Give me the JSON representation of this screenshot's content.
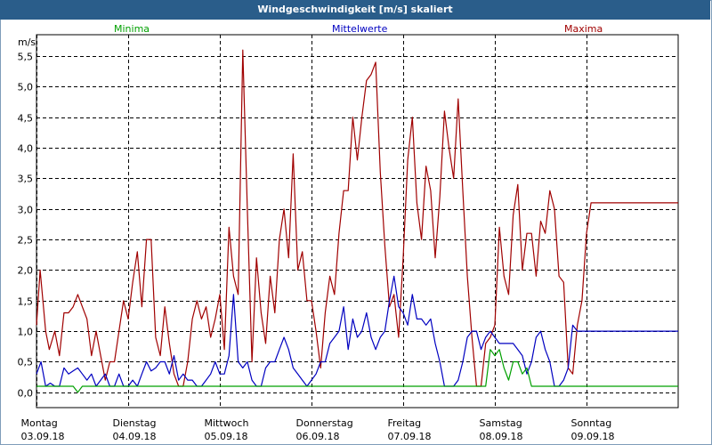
{
  "window": {
    "title": "Windgeschwindigkeit [m/s] skaliert"
  },
  "colors": {
    "min": "#00a000",
    "mean": "#0000c0",
    "max": "#a00000",
    "grid": "#000000",
    "titlebar": "#2a5d8a"
  },
  "chart_data": {
    "type": "line",
    "ylabel": "m/s",
    "ylim": [
      -0.25,
      5.85
    ],
    "y_ticks": [
      "0,0",
      "0,5",
      "1,0",
      "1,5",
      "2,0",
      "2,5",
      "3,0",
      "3,5",
      "4,0",
      "4,5",
      "5,0",
      "5,5"
    ],
    "y_tick_values": [
      0,
      0.5,
      1.0,
      1.5,
      2.0,
      2.5,
      3.0,
      3.5,
      4.0,
      4.5,
      5.0,
      5.5
    ],
    "x_range_days": [
      0,
      7
    ],
    "x_ticks": [
      {
        "day": "Montag",
        "date": "03.09.18"
      },
      {
        "day": "Dienstag",
        "date": "04.09.18"
      },
      {
        "day": "Mittwoch",
        "date": "05.09.18"
      },
      {
        "day": "Donnerstag",
        "date": "06.09.18"
      },
      {
        "day": "Freitag",
        "date": "07.09.18"
      },
      {
        "day": "Samstag",
        "date": "08.09.18"
      },
      {
        "day": "Sonntag",
        "date": "09.09.18"
      }
    ],
    "grid": true,
    "series": [
      {
        "name": "Maxima",
        "x": [
          0.0,
          0.04,
          0.1,
          0.14,
          0.2,
          0.25,
          0.3,
          0.35,
          0.4,
          0.45,
          0.5,
          0.55,
          0.6,
          0.65,
          0.7,
          0.75,
          0.8,
          0.85,
          0.9,
          0.95,
          1.0,
          1.05,
          1.1,
          1.15,
          1.2,
          1.25,
          1.3,
          1.35,
          1.4,
          1.45,
          1.5,
          1.55,
          1.6,
          1.65,
          1.7,
          1.75,
          1.8,
          1.85,
          1.9,
          1.95,
          2.0,
          2.05,
          2.1,
          2.15,
          2.2,
          2.25,
          2.3,
          2.35,
          2.4,
          2.45,
          2.5,
          2.55,
          2.6,
          2.65,
          2.7,
          2.75,
          2.8,
          2.85,
          2.9,
          2.95,
          3.0,
          3.05,
          3.1,
          3.15,
          3.2,
          3.25,
          3.3,
          3.35,
          3.4,
          3.45,
          3.5,
          3.55,
          3.6,
          3.65,
          3.7,
          3.75,
          3.8,
          3.85,
          3.9,
          3.95,
          4.0,
          4.05,
          4.1,
          4.15,
          4.2,
          4.25,
          4.3,
          4.35,
          4.4,
          4.45,
          4.5,
          4.55,
          4.6,
          4.65,
          4.7,
          4.75,
          4.8,
          4.85,
          4.9,
          4.95,
          5.0,
          5.05,
          5.1,
          5.15,
          5.2,
          5.25,
          5.3,
          5.35,
          5.4,
          5.45,
          5.5,
          5.55,
          5.6,
          5.65,
          5.7,
          5.75,
          5.8,
          5.85,
          5.9,
          5.95,
          6.0,
          6.05,
          6.1,
          6.15,
          6.2,
          6.25,
          6.3,
          6.35,
          6.4,
          6.45,
          6.5,
          6.55,
          6.6,
          6.65,
          6.7,
          6.75,
          6.8,
          6.85,
          6.9,
          6.95,
          7.0
        ],
        "values": [
          1.1,
          2.0,
          1.0,
          0.7,
          1.0,
          0.6,
          1.3,
          1.3,
          1.4,
          1.6,
          1.4,
          1.2,
          0.6,
          1.0,
          0.6,
          0.2,
          0.5,
          0.5,
          1.0,
          1.5,
          1.2,
          1.8,
          2.3,
          1.4,
          2.5,
          2.5,
          0.9,
          0.6,
          1.4,
          0.8,
          0.3,
          0.1,
          0.1,
          0.5,
          1.2,
          1.5,
          1.2,
          1.4,
          0.9,
          1.2,
          1.6,
          0.7,
          2.7,
          1.9,
          1.6,
          5.6,
          3.0,
          0.5,
          2.2,
          1.3,
          0.8,
          1.9,
          1.3,
          2.5,
          3.0,
          2.2,
          3.9,
          2.0,
          2.3,
          1.5,
          1.5,
          1.0,
          0.4,
          1.3,
          1.9,
          1.6,
          2.6,
          3.3,
          3.3,
          4.5,
          3.8,
          4.5,
          5.1,
          5.2,
          5.4,
          3.6,
          2.4,
          1.4,
          1.6,
          0.9,
          2.2,
          3.8,
          4.5,
          3.1,
          2.5,
          3.7,
          3.3,
          2.2,
          3.2,
          4.6,
          4.0,
          3.5,
          4.8,
          3.3,
          1.9,
          0.9,
          0.1,
          0.1,
          0.8,
          0.9,
          1.1,
          2.7,
          1.9,
          1.6,
          2.9,
          3.4,
          2.0,
          2.6,
          2.6,
          1.9,
          2.8,
          2.6,
          3.3,
          3.0,
          1.9,
          1.8,
          0.4,
          0.3,
          1.1,
          1.5,
          2.6,
          3.1,
          3.1,
          3.1,
          3.1,
          3.1,
          3.1,
          3.1,
          3.1,
          3.1,
          3.1,
          3.1,
          3.1,
          3.1,
          3.1,
          3.1,
          3.1,
          3.1,
          3.1,
          3.1,
          3.1
        ]
      },
      {
        "name": "Mittelwerte",
        "x": [
          0.0,
          0.05,
          0.1,
          0.15,
          0.2,
          0.25,
          0.3,
          0.35,
          0.4,
          0.45,
          0.5,
          0.55,
          0.6,
          0.65,
          0.7,
          0.75,
          0.8,
          0.85,
          0.9,
          0.95,
          1.0,
          1.05,
          1.1,
          1.15,
          1.2,
          1.25,
          1.3,
          1.35,
          1.4,
          1.45,
          1.5,
          1.55,
          1.6,
          1.65,
          1.7,
          1.75,
          1.8,
          1.85,
          1.9,
          1.95,
          2.0,
          2.05,
          2.1,
          2.15,
          2.2,
          2.25,
          2.3,
          2.35,
          2.4,
          2.45,
          2.5,
          2.55,
          2.6,
          2.65,
          2.7,
          2.75,
          2.8,
          2.85,
          2.9,
          2.95,
          3.0,
          3.05,
          3.1,
          3.15,
          3.2,
          3.25,
          3.3,
          3.35,
          3.4,
          3.45,
          3.5,
          3.55,
          3.6,
          3.65,
          3.7,
          3.75,
          3.8,
          3.85,
          3.9,
          3.95,
          4.0,
          4.05,
          4.1,
          4.15,
          4.2,
          4.25,
          4.3,
          4.35,
          4.4,
          4.45,
          4.5,
          4.55,
          4.6,
          4.65,
          4.7,
          4.75,
          4.8,
          4.85,
          4.9,
          4.95,
          5.0,
          5.05,
          5.1,
          5.15,
          5.2,
          5.25,
          5.3,
          5.35,
          5.4,
          5.45,
          5.5,
          5.55,
          5.6,
          5.65,
          5.7,
          5.75,
          5.8,
          5.85,
          5.9,
          5.95,
          6.0,
          6.05,
          6.1,
          6.15,
          6.2,
          6.25,
          6.3,
          6.35,
          6.4,
          6.45,
          6.5,
          6.55,
          6.6,
          6.65,
          6.7,
          6.75,
          6.8,
          6.85,
          6.9,
          6.95,
          7.0
        ],
        "values": [
          0.3,
          0.5,
          0.1,
          0.15,
          0.1,
          0.1,
          0.4,
          0.3,
          0.35,
          0.4,
          0.3,
          0.2,
          0.3,
          0.1,
          0.2,
          0.3,
          0.1,
          0.1,
          0.3,
          0.1,
          0.1,
          0.2,
          0.1,
          0.3,
          0.5,
          0.35,
          0.4,
          0.5,
          0.5,
          0.3,
          0.6,
          0.2,
          0.3,
          0.2,
          0.2,
          0.1,
          0.1,
          0.2,
          0.3,
          0.5,
          0.3,
          0.3,
          0.6,
          1.6,
          0.5,
          0.4,
          0.5,
          0.2,
          0.1,
          0.1,
          0.4,
          0.5,
          0.5,
          0.7,
          0.9,
          0.7,
          0.4,
          0.3,
          0.2,
          0.1,
          0.2,
          0.3,
          0.5,
          0.5,
          0.8,
          0.9,
          1.0,
          1.4,
          0.7,
          1.2,
          0.9,
          1.0,
          1.3,
          0.9,
          0.7,
          0.9,
          1.0,
          1.5,
          1.9,
          1.4,
          1.3,
          1.1,
          1.6,
          1.2,
          1.2,
          1.1,
          1.2,
          0.8,
          0.5,
          0.1,
          0.1,
          0.1,
          0.2,
          0.5,
          0.9,
          1.0,
          1.0,
          0.7,
          0.9,
          1.0,
          0.9,
          0.8,
          0.8,
          0.8,
          0.8,
          0.7,
          0.6,
          0.3,
          0.5,
          0.9,
          1.0,
          0.7,
          0.5,
          0.1,
          0.1,
          0.2,
          0.4,
          1.1,
          1.0,
          1.0,
          1.0,
          1.0,
          1.0,
          1.0,
          1.0,
          1.0,
          1.0,
          1.0,
          1.0,
          1.0,
          1.0,
          1.0,
          1.0,
          1.0,
          1.0,
          1.0,
          1.0,
          1.0,
          1.0,
          1.0,
          1.0
        ]
      },
      {
        "name": "Minima",
        "x": [
          0.0,
          0.3,
          0.4,
          0.45,
          0.5,
          4.9,
          4.95,
          5.0,
          5.05,
          5.1,
          5.15,
          5.2,
          5.25,
          5.3,
          5.35,
          5.4,
          5.45,
          5.5,
          5.55,
          7.0
        ],
        "values": [
          0.1,
          0.1,
          0.1,
          0.0,
          0.1,
          0.1,
          0.7,
          0.6,
          0.7,
          0.4,
          0.2,
          0.5,
          0.5,
          0.3,
          0.4,
          0.1,
          0.1,
          0.1,
          0.1,
          0.1
        ]
      }
    ]
  }
}
